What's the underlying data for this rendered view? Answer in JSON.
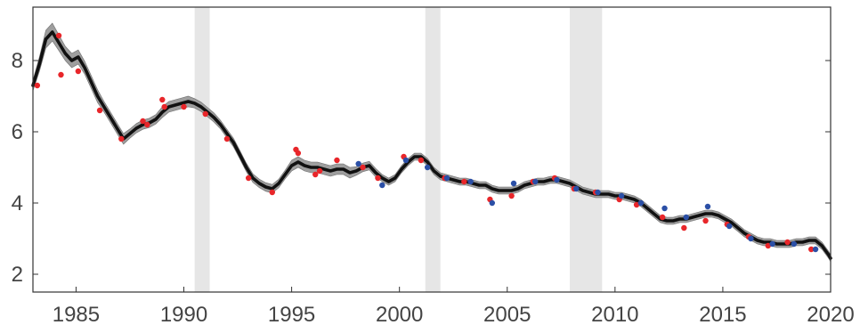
{
  "chart_data": {
    "type": "line",
    "title": "",
    "xlabel": "",
    "ylabel": "",
    "xlim": [
      1983,
      2020
    ],
    "ylim": [
      1.5,
      9.5
    ],
    "x_ticks": [
      1985,
      1990,
      1995,
      2000,
      2005,
      2010,
      2015,
      2020
    ],
    "x_tick_labels": [
      "1985",
      "1990",
      "1995",
      "2000",
      "2005",
      "2010",
      "2015",
      "2020"
    ],
    "y_ticks": [
      2,
      4,
      6,
      8
    ],
    "y_tick_labels": [
      "2",
      "4",
      "6",
      "8"
    ],
    "grid": false,
    "legend": "none",
    "recession_bands": [
      {
        "start": 1990.5,
        "end": 1991.2
      },
      {
        "start": 2001.2,
        "end": 2001.9
      },
      {
        "start": 2007.9,
        "end": 2009.4
      }
    ],
    "series": [
      {
        "style": "line-with-band",
        "color": "#111111",
        "band_color": "#9e9e9e",
        "x": [
          1983.0,
          1983.3,
          1983.6,
          1983.9,
          1984.2,
          1984.5,
          1984.8,
          1985.1,
          1985.4,
          1985.7,
          1986.0,
          1986.3,
          1986.6,
          1986.9,
          1987.2,
          1987.5,
          1987.8,
          1988.1,
          1988.4,
          1988.7,
          1989.0,
          1989.3,
          1989.6,
          1989.9,
          1990.2,
          1990.5,
          1990.8,
          1991.1,
          1991.4,
          1991.7,
          1992.0,
          1992.3,
          1992.6,
          1992.9,
          1993.2,
          1993.5,
          1993.8,
          1994.1,
          1994.4,
          1994.7,
          1995.0,
          1995.3,
          1995.6,
          1995.9,
          1996.2,
          1996.5,
          1996.8,
          1997.1,
          1997.4,
          1997.7,
          1998.0,
          1998.3,
          1998.6,
          1998.9,
          1999.2,
          1999.5,
          1999.8,
          2000.1,
          2000.4,
          2000.7,
          2001.0,
          2001.3,
          2001.6,
          2001.9,
          2002.2,
          2002.5,
          2002.8,
          2003.1,
          2003.4,
          2003.7,
          2004.0,
          2004.3,
          2004.6,
          2004.9,
          2005.2,
          2005.5,
          2005.8,
          2006.1,
          2006.4,
          2006.7,
          2007.0,
          2007.3,
          2007.6,
          2007.9,
          2008.2,
          2008.5,
          2008.8,
          2009.1,
          2009.4,
          2009.7,
          2010.0,
          2010.3,
          2010.6,
          2010.9,
          2011.2,
          2011.5,
          2011.8,
          2012.1,
          2012.4,
          2012.7,
          2013.0,
          2013.3,
          2013.6,
          2013.9,
          2014.2,
          2014.5,
          2014.8,
          2015.1,
          2015.4,
          2015.7,
          2016.0,
          2016.3,
          2016.6,
          2016.9,
          2017.2,
          2017.5,
          2017.8,
          2018.1,
          2018.4,
          2018.7,
          2019.0,
          2019.3,
          2019.6,
          2019.9,
          2020.0
        ],
        "y": [
          7.3,
          7.9,
          8.6,
          8.8,
          8.5,
          8.2,
          8.0,
          8.1,
          7.8,
          7.4,
          7.0,
          6.7,
          6.4,
          6.1,
          5.8,
          5.95,
          6.1,
          6.2,
          6.25,
          6.35,
          6.55,
          6.7,
          6.75,
          6.8,
          6.85,
          6.8,
          6.7,
          6.55,
          6.4,
          6.2,
          5.95,
          5.7,
          5.35,
          5.0,
          4.7,
          4.55,
          4.45,
          4.4,
          4.55,
          4.8,
          5.05,
          5.15,
          5.05,
          5.0,
          5.0,
          4.95,
          4.9,
          4.95,
          4.95,
          4.85,
          4.9,
          5.0,
          5.05,
          4.85,
          4.7,
          4.6,
          4.7,
          4.95,
          5.15,
          5.3,
          5.3,
          5.15,
          4.9,
          4.75,
          4.7,
          4.65,
          4.6,
          4.6,
          4.55,
          4.5,
          4.5,
          4.4,
          4.35,
          4.35,
          4.35,
          4.4,
          4.5,
          4.55,
          4.6,
          4.6,
          4.65,
          4.65,
          4.6,
          4.55,
          4.45,
          4.35,
          4.3,
          4.25,
          4.25,
          4.25,
          4.2,
          4.2,
          4.15,
          4.1,
          4.0,
          3.85,
          3.7,
          3.55,
          3.5,
          3.5,
          3.55,
          3.55,
          3.6,
          3.65,
          3.7,
          3.7,
          3.65,
          3.55,
          3.45,
          3.3,
          3.15,
          3.05,
          2.95,
          2.9,
          2.9,
          2.85,
          2.85,
          2.85,
          2.9,
          2.9,
          2.95,
          2.95,
          2.8,
          2.55,
          2.45
        ],
        "band_halfwidth": [
          0.15,
          0.2,
          0.25,
          0.25,
          0.22,
          0.2,
          0.2,
          0.2,
          0.18,
          0.18,
          0.18,
          0.15,
          0.15,
          0.15,
          0.15,
          0.13,
          0.13,
          0.13,
          0.13,
          0.13,
          0.15,
          0.15,
          0.15,
          0.15,
          0.15,
          0.13,
          0.13,
          0.13,
          0.13,
          0.12,
          0.12,
          0.12,
          0.12,
          0.12,
          0.12,
          0.12,
          0.12,
          0.12,
          0.12,
          0.12,
          0.15,
          0.15,
          0.15,
          0.15,
          0.15,
          0.15,
          0.15,
          0.15,
          0.15,
          0.15,
          0.12,
          0.12,
          0.12,
          0.12,
          0.1,
          0.1,
          0.1,
          0.1,
          0.1,
          0.1,
          0.1,
          0.1,
          0.1,
          0.1,
          0.1,
          0.1,
          0.1,
          0.1,
          0.1,
          0.1,
          0.1,
          0.1,
          0.1,
          0.1,
          0.1,
          0.1,
          0.1,
          0.1,
          0.1,
          0.1,
          0.1,
          0.1,
          0.1,
          0.1,
          0.1,
          0.1,
          0.1,
          0.1,
          0.1,
          0.1,
          0.1,
          0.1,
          0.1,
          0.1,
          0.1,
          0.1,
          0.1,
          0.1,
          0.1,
          0.1,
          0.1,
          0.1,
          0.1,
          0.1,
          0.1,
          0.1,
          0.1,
          0.1,
          0.1,
          0.1,
          0.1,
          0.1,
          0.1,
          0.1,
          0.1,
          0.1,
          0.1,
          0.1,
          0.1,
          0.1,
          0.1,
          0.1,
          0.1,
          0.1,
          0.1
        ]
      },
      {
        "style": "scatter",
        "color": "#e8262a",
        "x": [
          1983.2,
          1984.2,
          1984.3,
          1985.1,
          1986.1,
          1987.1,
          1988.1,
          1988.3,
          1989.0,
          1989.1,
          1990.0,
          1991.0,
          1992.0,
          1993.0,
          1994.1,
          1995.2,
          1995.3,
          1996.1,
          1996.3,
          1997.1,
          1998.3,
          1999.0,
          2000.2,
          2001.0,
          2002.1,
          2003.0,
          2004.2,
          2005.2,
          2006.2,
          2007.2,
          2008.1,
          2009.1,
          2010.2,
          2011.0,
          2012.2,
          2013.2,
          2014.2,
          2015.2,
          2016.2,
          2017.1,
          2018.0,
          2019.1
        ],
        "y": [
          7.3,
          8.7,
          7.6,
          7.7,
          6.6,
          5.8,
          6.3,
          6.2,
          6.9,
          6.7,
          6.7,
          6.5,
          5.8,
          4.7,
          4.3,
          5.5,
          5.4,
          4.8,
          4.9,
          5.2,
          5.0,
          4.7,
          5.3,
          5.2,
          4.7,
          4.6,
          4.1,
          4.2,
          4.6,
          4.7,
          4.4,
          4.3,
          4.1,
          3.95,
          3.6,
          3.3,
          3.5,
          3.4,
          3.05,
          2.8,
          2.9,
          2.7
        ]
      },
      {
        "style": "scatter",
        "color": "#2b4fa6",
        "x": [
          1998.1,
          1999.2,
          2000.3,
          2001.3,
          2002.2,
          2003.3,
          2004.3,
          2005.3,
          2006.3,
          2007.3,
          2008.2,
          2009.2,
          2010.3,
          2011.2,
          2012.3,
          2013.3,
          2014.3,
          2015.3,
          2016.3,
          2017.3,
          2018.3,
          2019.3
        ],
        "y": [
          5.1,
          4.5,
          5.2,
          5.0,
          4.7,
          4.6,
          4.0,
          4.55,
          4.6,
          4.65,
          4.4,
          4.3,
          4.2,
          4.0,
          3.85,
          3.6,
          3.9,
          3.35,
          3.0,
          2.85,
          2.85,
          2.7
        ]
      }
    ]
  }
}
